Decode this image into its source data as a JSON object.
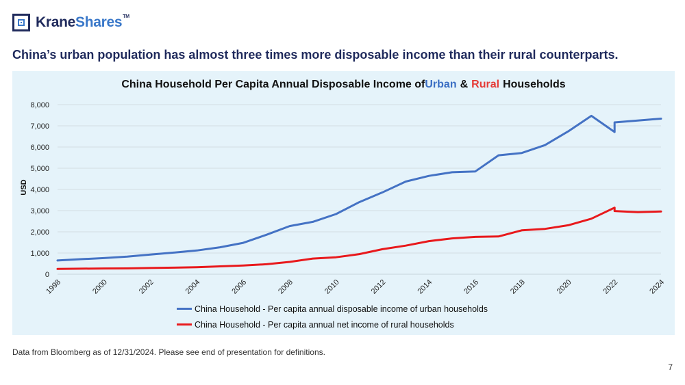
{
  "logo": {
    "part1": "Krane",
    "part2": "Shares",
    "tm": "TM"
  },
  "headline": "China’s urban population has almost three times more disposable income than their rural counterparts.",
  "chart_title": {
    "prefix": "China Household Per Capita Annual Disposable Income of",
    "urban": "Urban",
    "amp": "&",
    "rural": "Rural",
    "suffix": "Households"
  },
  "footnote": "Data from Bloomberg as of 12/31/2024. Please see end of presentation for definitions.",
  "page_number": "7",
  "colors": {
    "urban": "#4472C4",
    "rural": "#E8191C",
    "headline": "#1f2a5c",
    "chart_bg": "#e5f3fa"
  },
  "chart_data": {
    "type": "line",
    "title": "China Household Per Capita Annual Disposable Income of Urban & Rural Households",
    "xlabel": "",
    "ylabel": "USD",
    "xlim": [
      1998,
      2024
    ],
    "ylim": [
      0,
      8000
    ],
    "yticks": [
      0,
      1000,
      2000,
      3000,
      4000,
      5000,
      6000,
      7000,
      8000
    ],
    "ytick_labels": [
      "0",
      "1,000",
      "2,000",
      "3,000",
      "4,000",
      "5,000",
      "6,000",
      "7,000",
      "8,000"
    ],
    "xticks": [
      1998,
      2000,
      2002,
      2004,
      2006,
      2008,
      2010,
      2012,
      2014,
      2016,
      2018,
      2020,
      2022,
      2024
    ],
    "grid": true,
    "legend_position": "bottom",
    "series": [
      {
        "name": "China Household - Per capita annual disposable income of urban households",
        "color": "#4472C4",
        "x": [
          1998,
          1999,
          2000,
          2001,
          2002,
          2003,
          2004,
          2005,
          2006,
          2007,
          2008,
          2009,
          2010,
          2011,
          2012,
          2013,
          2014,
          2015,
          2016,
          2017,
          2018,
          2019,
          2020,
          2021,
          2022,
          2022,
          2023,
          2024
        ],
        "y": [
          650,
          710,
          760,
          830,
          930,
          1020,
          1120,
          1270,
          1480,
          1860,
          2270,
          2470,
          2840,
          3400,
          3860,
          4370,
          4640,
          4810,
          4850,
          5610,
          5720,
          6090,
          6740,
          7470,
          6710,
          7160,
          7250,
          7340
        ]
      },
      {
        "name": "China Household - Per capita annual net income of rural households",
        "color": "#E8191C",
        "x": [
          1998,
          1999,
          2000,
          2001,
          2002,
          2003,
          2004,
          2005,
          2006,
          2007,
          2008,
          2009,
          2010,
          2011,
          2012,
          2013,
          2014,
          2015,
          2016,
          2017,
          2018,
          2019,
          2020,
          2021,
          2022,
          2022,
          2023,
          2024
        ],
        "y": [
          250,
          260,
          270,
          275,
          295,
          310,
          330,
          370,
          410,
          470,
          580,
          740,
          800,
          950,
          1180,
          1350,
          1560,
          1690,
          1760,
          1780,
          2070,
          2140,
          2310,
          2620,
          3140,
          2980,
          2930,
          2960
        ]
      }
    ]
  }
}
